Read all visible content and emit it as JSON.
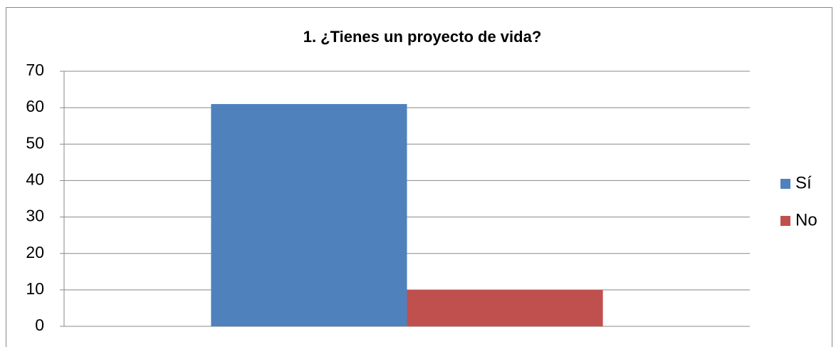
{
  "chart_data": {
    "type": "bar",
    "title": "1. ¿Tienes un proyecto de vida?",
    "categories": [
      null
    ],
    "series": [
      {
        "name": "Sí",
        "color": "#4f81bd",
        "values": [
          61
        ]
      },
      {
        "name": "No",
        "color": "#c0504d",
        "values": [
          10
        ]
      }
    ],
    "ylim": [
      0,
      70
    ],
    "yticks": [
      0,
      10,
      20,
      30,
      40,
      50,
      60,
      70
    ],
    "grid": true,
    "legend": "right"
  }
}
